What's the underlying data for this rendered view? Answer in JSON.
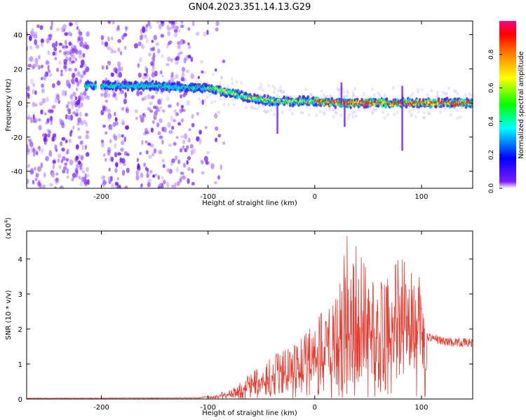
{
  "title": "GN04.2023.351.14.13.G29",
  "colors": {
    "snr_line": "#e8392e",
    "scatter_purple": "#7a22ff",
    "axis": "#000000"
  },
  "colorbar": {
    "label": "Normalized spectral amplitude",
    "ticks": [
      "0.0",
      "0.2",
      "0.4",
      "0.6",
      "0.8"
    ],
    "tick_values": [
      0.0,
      0.2,
      0.4,
      0.6,
      0.8
    ],
    "range": [
      0,
      1
    ],
    "colormap": [
      "#ffffff",
      "#7a1cff",
      "#0000ff",
      "#00ffff",
      "#00ff00",
      "#ffff00",
      "#ff8000",
      "#ff0000",
      "#ff0080"
    ]
  },
  "chart_data": [
    {
      "type": "heatmap",
      "xlabel": "Height of straight line (km)",
      "ylabel": "Frequency (Hz)",
      "xlim": [
        -270,
        148
      ],
      "ylim": [
        -50,
        48
      ],
      "xticks": [
        -200,
        -100,
        0,
        100
      ],
      "xtick_labels": [
        "-200",
        "-100",
        "0",
        "100"
      ],
      "yticks": [
        -40,
        -20,
        0,
        20,
        40
      ],
      "ytick_labels": [
        "-40",
        "-20",
        "0",
        "20",
        "40"
      ],
      "ridge": {
        "x": [
          -215,
          -180,
          -150,
          -120,
          -100,
          -80,
          -60,
          -40,
          -20,
          0,
          20,
          40,
          60,
          80,
          100,
          120,
          148
        ],
        "y": [
          10,
          10,
          10,
          9,
          9,
          6,
          3,
          1,
          1,
          1,
          0,
          0,
          0,
          0,
          0,
          0,
          0
        ]
      }
    },
    {
      "type": "line",
      "xlabel": "Height of straight line (km)",
      "ylabel": "SNR (10 * v/v)",
      "y_multiplier": "(x10",
      "y_multiplier_exp": "4",
      "y_multiplier_close": ")",
      "xlim": [
        -270,
        148
      ],
      "ylim": [
        0,
        4.8
      ],
      "xticks": [
        -200,
        -100,
        0,
        100
      ],
      "xtick_labels": [
        "-200",
        "-100",
        "0",
        "100"
      ],
      "yticks": [
        0,
        1,
        2,
        3,
        4
      ],
      "ytick_labels": [
        "0",
        "1",
        "2",
        "3",
        "4"
      ],
      "envelope": {
        "x": [
          -270,
          -110,
          -95,
          -80,
          -65,
          -55,
          -45,
          -35,
          -20,
          -10,
          0,
          10,
          20,
          25,
          30,
          40,
          50,
          60,
          70,
          80,
          90,
          100,
          105,
          120,
          148
        ],
        "y": [
          0.02,
          0.03,
          0.08,
          0.3,
          0.6,
          0.9,
          1.1,
          1.3,
          1.5,
          1.8,
          2.2,
          2.6,
          3.0,
          3.4,
          4.8,
          4.3,
          3.6,
          3.3,
          3.5,
          4.1,
          3.8,
          3.8,
          1.8,
          1.65,
          1.6
        ]
      }
    }
  ]
}
